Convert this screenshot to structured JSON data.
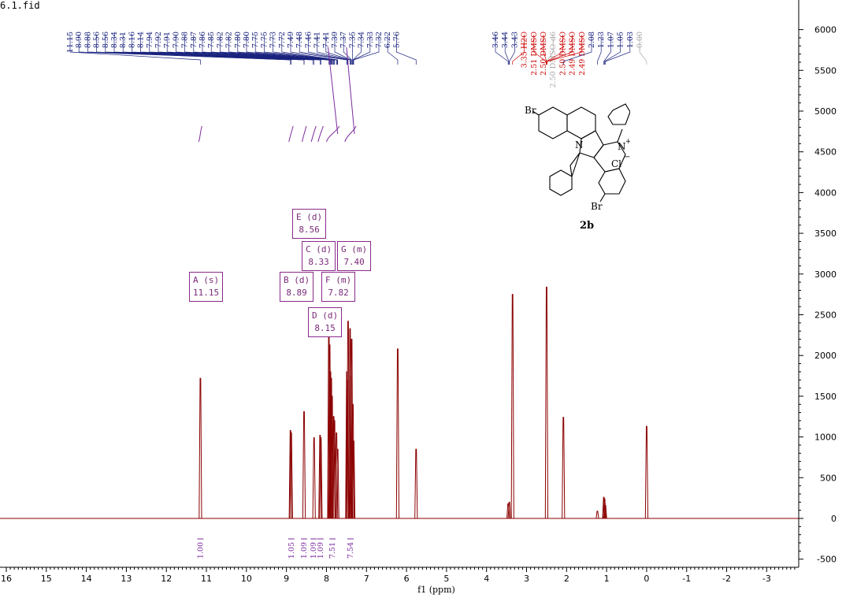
{
  "title": "6.1.fid",
  "chart_data": {
    "type": "line",
    "title": "6.1.fid",
    "xlabel": "f1 (ppm)",
    "ylabel": "",
    "xlim": [
      16.0,
      -3.8
    ],
    "ylim": [
      -500,
      6000
    ],
    "x_reversed": true,
    "x_ticks": [
      "16",
      "15",
      "14",
      "13",
      "12",
      "11",
      "10",
      "9",
      "8",
      "7",
      "6",
      "5",
      "4",
      "3",
      "2",
      "1",
      "0",
      "-1",
      "-2",
      "-3"
    ],
    "y_ticks": [
      "-500",
      "0",
      "500",
      "1000",
      "1500",
      "2000",
      "2500",
      "3000",
      "3500",
      "4000",
      "4500",
      "5000",
      "5500",
      "6000"
    ],
    "series": [
      {
        "values": [
          {
            "x": 11.15,
            "y": 1720
          },
          {
            "x": 8.9,
            "y": 1080
          },
          {
            "x": 8.88,
            "y": 1050
          },
          {
            "x": 8.56,
            "y": 1310
          },
          {
            "x": 8.31,
            "y": 990
          },
          {
            "x": 8.16,
            "y": 1020
          },
          {
            "x": 8.14,
            "y": 990
          },
          {
            "x": 7.94,
            "y": 2280
          },
          {
            "x": 7.92,
            "y": 2130
          },
          {
            "x": 7.9,
            "y": 1800
          },
          {
            "x": 7.88,
            "y": 1720
          },
          {
            "x": 7.86,
            "y": 1500
          },
          {
            "x": 7.82,
            "y": 1250
          },
          {
            "x": 7.8,
            "y": 1200
          },
          {
            "x": 7.75,
            "y": 1050
          },
          {
            "x": 7.72,
            "y": 850
          },
          {
            "x": 7.49,
            "y": 1800
          },
          {
            "x": 7.48,
            "y": 1700
          },
          {
            "x": 7.46,
            "y": 2420
          },
          {
            "x": 7.41,
            "y": 2330
          },
          {
            "x": 7.39,
            "y": 1750
          },
          {
            "x": 7.37,
            "y": 2200
          },
          {
            "x": 7.34,
            "y": 1400
          },
          {
            "x": 7.32,
            "y": 950
          },
          {
            "x": 6.22,
            "y": 2080
          },
          {
            "x": 5.76,
            "y": 850
          },
          {
            "x": 3.46,
            "y": 180
          },
          {
            "x": 3.43,
            "y": 200
          },
          {
            "x": 3.35,
            "y": 2750
          },
          {
            "x": 2.5,
            "y": 2840
          },
          {
            "x": 2.08,
            "y": 1240
          },
          {
            "x": 1.23,
            "y": 90
          },
          {
            "x": 1.07,
            "y": 260
          },
          {
            "x": 1.05,
            "y": 240
          },
          {
            "x": 1.03,
            "y": 160
          },
          {
            "x": 0.0,
            "y": 1130
          }
        ]
      }
    ],
    "peak_labels_blue": [
      "11.15",
      "8.90",
      "8.88",
      "8.56",
      "8.56",
      "8.34",
      "8.31",
      "8.16",
      "8.14",
      "7.94",
      "7.92",
      "7.91",
      "7.90",
      "7.88",
      "7.87",
      "7.86",
      "7.85",
      "7.82",
      "7.82",
      "7.80",
      "7.80",
      "7.75",
      "7.75",
      "7.73",
      "7.72",
      "7.49",
      "7.48",
      "7.46",
      "7.41",
      "7.41",
      "7.39",
      "7.37",
      "7.35",
      "7.34",
      "7.33",
      "7.32",
      "6.22",
      "5.76"
    ],
    "peak_labels_right": [
      {
        "text": "3.46",
        "color": "#1a237e"
      },
      {
        "text": "3.44",
        "color": "#1a237e"
      },
      {
        "text": "3.43",
        "color": "#1a237e"
      },
      {
        "text": "3.35 H2O",
        "color": "#cc0000"
      },
      {
        "text": "2.51 DMSO",
        "color": "#cc0000"
      },
      {
        "text": "2.50 DMSO",
        "color": "#cc0000"
      },
      {
        "text": "2.50 DMSO-d6",
        "color": "#aaaaaa"
      },
      {
        "text": "2.50 DMSO",
        "color": "#cc0000"
      },
      {
        "text": "2.49 DMSO",
        "color": "#cc0000"
      },
      {
        "text": "2.49 DMSO",
        "color": "#cc0000"
      },
      {
        "text": "2.08",
        "color": "#1a237e"
      },
      {
        "text": "1.23",
        "color": "#1a237e"
      },
      {
        "text": "1.07",
        "color": "#1a237e"
      },
      {
        "text": "1.05",
        "color": "#1a237e"
      },
      {
        "text": "1.03",
        "color": "#1a237e"
      },
      {
        "text": "-0.00",
        "color": "#aaaaaa"
      }
    ],
    "integrals": [
      "1.00",
      "1.05",
      "1.09",
      "1.09",
      "1.09",
      "7.51",
      "7.54"
    ],
    "multiplets": [
      {
        "letter": "A (s)",
        "shift": "11.15"
      },
      {
        "letter": "B (d)",
        "shift": "8.89"
      },
      {
        "letter": "E (d)",
        "shift": "8.56"
      },
      {
        "letter": "C (d)",
        "shift": "8.33"
      },
      {
        "letter": "G (m)",
        "shift": "7.40"
      },
      {
        "letter": "F (m)",
        "shift": "7.82"
      },
      {
        "letter": "D (d)",
        "shift": "8.15"
      }
    ],
    "colors": {
      "spectrum": "#8b0000",
      "integral": "#7b2a9e",
      "labels": "#1a237e",
      "solvent": "#cc0000",
      "tms": "#aaaaaa",
      "box": "#8a2a8a"
    }
  },
  "structure": {
    "compound_label": "2b",
    "atoms": {
      "br1": "Br",
      "br2": "Br",
      "n1": "N",
      "n2": "N",
      "plus": "+",
      "cl": "Cl",
      "minus": "−"
    }
  }
}
